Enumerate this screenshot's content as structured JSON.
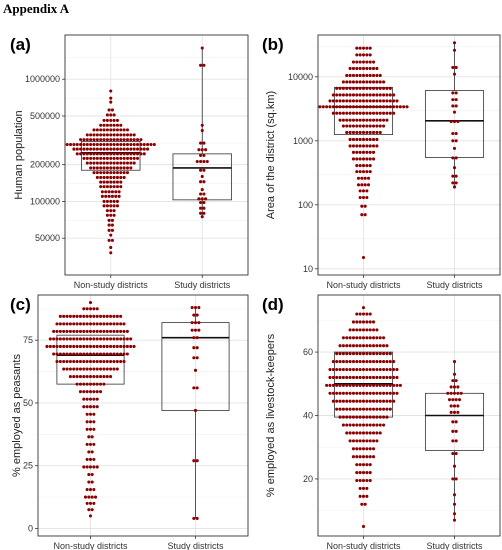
{
  "heading": "Appendix A",
  "colors": {
    "dot": "#8b0000",
    "box": "#333333",
    "grid_major": "#e3e3e3",
    "grid_minor": "#f1f1f1",
    "panel_border": "#333333",
    "background": "#ffffff"
  },
  "chart_data": [
    {
      "panel_label": "(a)",
      "type": "dotplot-boxplot",
      "ylabel": "Human population",
      "y_scale": "log",
      "ylim": [
        25000,
        2300000
      ],
      "yticks": [
        50000,
        100000,
        200000,
        500000,
        1000000
      ],
      "ytick_labels": [
        "50000",
        "100000",
        "200000",
        "500000",
        "1000000"
      ],
      "minor_breaks": [
        70000,
        140000,
        300000,
        700000,
        1500000
      ],
      "categories": [
        "Non-study districts",
        "Study districts"
      ],
      "box": [
        {
          "name": "Non-study districts",
          "q1": 180000,
          "median": 250000,
          "q3": 310000
        },
        {
          "name": "Study districts",
          "q1": 103000,
          "median": 188000,
          "q3": 245000,
          "lower_whisker": 75000,
          "upper_whisker": 1800000
        }
      ],
      "dots": [
        {
          "name": "Non-study districts",
          "bins": [
            {
              "y": 800000,
              "n": 1
            },
            {
              "y": 700000,
              "n": 1
            },
            {
              "y": 650000,
              "n": 1
            },
            {
              "y": 560000,
              "n": 2
            },
            {
              "y": 510000,
              "n": 3
            },
            {
              "y": 460000,
              "n": 5
            },
            {
              "y": 420000,
              "n": 7
            },
            {
              "y": 385000,
              "n": 11
            },
            {
              "y": 350000,
              "n": 15
            },
            {
              "y": 320000,
              "n": 19
            },
            {
              "y": 292000,
              "n": 27
            },
            {
              "y": 268000,
              "n": 23
            },
            {
              "y": 245000,
              "n": 21
            },
            {
              "y": 225000,
              "n": 17
            },
            {
              "y": 206000,
              "n": 15
            },
            {
              "y": 188000,
              "n": 13
            },
            {
              "y": 172000,
              "n": 11
            },
            {
              "y": 157000,
              "n": 9
            },
            {
              "y": 144000,
              "n": 7
            },
            {
              "y": 132000,
              "n": 7
            },
            {
              "y": 120000,
              "n": 6
            },
            {
              "y": 110000,
              "n": 6
            },
            {
              "y": 100000,
              "n": 5
            },
            {
              "y": 92000,
              "n": 5
            },
            {
              "y": 84000,
              "n": 3
            },
            {
              "y": 77000,
              "n": 3
            },
            {
              "y": 70000,
              "n": 2
            },
            {
              "y": 64000,
              "n": 2
            },
            {
              "y": 58000,
              "n": 2
            },
            {
              "y": 53000,
              "n": 1
            },
            {
              "y": 48000,
              "n": 2
            },
            {
              "y": 42000,
              "n": 1
            },
            {
              "y": 38000,
              "n": 1
            }
          ]
        },
        {
          "name": "Study districts",
          "bins": [
            {
              "y": 1800000,
              "n": 1
            },
            {
              "y": 1300000,
              "n": 2
            },
            {
              "y": 420000,
              "n": 1
            },
            {
              "y": 380000,
              "n": 1
            },
            {
              "y": 300000,
              "n": 2
            },
            {
              "y": 265000,
              "n": 3
            },
            {
              "y": 238000,
              "n": 2
            },
            {
              "y": 212000,
              "n": 4
            },
            {
              "y": 180000,
              "n": 2
            },
            {
              "y": 160000,
              "n": 1
            },
            {
              "y": 145000,
              "n": 2
            },
            {
              "y": 125000,
              "n": 1
            },
            {
              "y": 115000,
              "n": 2
            },
            {
              "y": 105000,
              "n": 3
            },
            {
              "y": 98000,
              "n": 2
            },
            {
              "y": 88000,
              "n": 2
            },
            {
              "y": 80000,
              "n": 2
            },
            {
              "y": 75000,
              "n": 1
            }
          ]
        }
      ]
    },
    {
      "panel_label": "(b)",
      "type": "dotplot-boxplot",
      "ylabel": "Area of the district (sq.km)",
      "y_scale": "log",
      "ylim": [
        8,
        45000
      ],
      "yticks": [
        10,
        100,
        1000,
        10000
      ],
      "ytick_labels": [
        "10",
        "100",
        "1000",
        "10000"
      ],
      "minor_breaks": [
        30,
        300,
        3000,
        30000
      ],
      "categories": [
        "Non-study districts",
        "Study districts"
      ],
      "box": [
        {
          "name": "Non-study districts",
          "q1": 1250,
          "median": 3400,
          "q3": 6800
        },
        {
          "name": "Study districts",
          "q1": 550,
          "median": 2050,
          "q3": 6100,
          "lower_whisker": 190,
          "upper_whisker": 35000
        }
      ],
      "dots": [
        {
          "name": "Non-study districts",
          "bins": [
            {
              "y": 28000,
              "n": 5
            },
            {
              "y": 22000,
              "n": 5
            },
            {
              "y": 17000,
              "n": 7
            },
            {
              "y": 13500,
              "n": 9
            },
            {
              "y": 10500,
              "n": 11
            },
            {
              "y": 8300,
              "n": 13
            },
            {
              "y": 6600,
              "n": 17
            },
            {
              "y": 5200,
              "n": 19
            },
            {
              "y": 4200,
              "n": 21
            },
            {
              "y": 3400,
              "n": 27
            },
            {
              "y": 2700,
              "n": 19
            },
            {
              "y": 2100,
              "n": 15
            },
            {
              "y": 1700,
              "n": 13
            },
            {
              "y": 1350,
              "n": 11
            },
            {
              "y": 1050,
              "n": 9
            },
            {
              "y": 830,
              "n": 9
            },
            {
              "y": 660,
              "n": 7
            },
            {
              "y": 520,
              "n": 7
            },
            {
              "y": 410,
              "n": 5
            },
            {
              "y": 330,
              "n": 5
            },
            {
              "y": 260,
              "n": 4
            },
            {
              "y": 205,
              "n": 4
            },
            {
              "y": 165,
              "n": 3
            },
            {
              "y": 130,
              "n": 3
            },
            {
              "y": 95,
              "n": 2
            },
            {
              "y": 70,
              "n": 2
            },
            {
              "y": 15,
              "n": 1
            }
          ]
        },
        {
          "name": "Study districts",
          "bins": [
            {
              "y": 34000,
              "n": 1
            },
            {
              "y": 26000,
              "n": 1
            },
            {
              "y": 14000,
              "n": 2
            },
            {
              "y": 11000,
              "n": 1
            },
            {
              "y": 5600,
              "n": 2
            },
            {
              "y": 4400,
              "n": 2
            },
            {
              "y": 3500,
              "n": 2
            },
            {
              "y": 2800,
              "n": 1
            },
            {
              "y": 2000,
              "n": 3
            },
            {
              "y": 1300,
              "n": 2
            },
            {
              "y": 1000,
              "n": 2
            },
            {
              "y": 760,
              "n": 1
            },
            {
              "y": 540,
              "n": 2
            },
            {
              "y": 380,
              "n": 1
            },
            {
              "y": 280,
              "n": 2
            },
            {
              "y": 220,
              "n": 2
            },
            {
              "y": 190,
              "n": 1
            }
          ]
        }
      ]
    },
    {
      "panel_label": "(c)",
      "type": "dotplot-boxplot",
      "ylabel": "% employed as peasants",
      "y_scale": "linear",
      "ylim": [
        -3,
        93
      ],
      "yticks": [
        0,
        25,
        50,
        75
      ],
      "ytick_labels": [
        "0",
        "25",
        "50",
        "75"
      ],
      "minor_breaks": [
        12.5,
        37.5,
        62.5,
        87.5
      ],
      "categories": [
        "Non-study districts",
        "Study districts"
      ],
      "box": [
        {
          "name": "Non-study districts",
          "q1": 57.5,
          "median": 69,
          "q3": 77
        },
        {
          "name": "Study districts",
          "q1": 47,
          "median": 76,
          "q3": 82,
          "lower_whisker": 4,
          "upper_whisker": 88
        }
      ],
      "dots": [
        {
          "name": "Non-study districts",
          "bins": [
            {
              "y": 90,
              "n": 1
            },
            {
              "y": 87.5,
              "n": 5
            },
            {
              "y": 84.5,
              "n": 19
            },
            {
              "y": 81.5,
              "n": 21
            },
            {
              "y": 78.5,
              "n": 23
            },
            {
              "y": 75.5,
              "n": 25
            },
            {
              "y": 72.5,
              "n": 27
            },
            {
              "y": 69.5,
              "n": 23
            },
            {
              "y": 66.5,
              "n": 21
            },
            {
              "y": 63.5,
              "n": 17
            },
            {
              "y": 60.5,
              "n": 13
            },
            {
              "y": 57.5,
              "n": 9
            },
            {
              "y": 54.5,
              "n": 7
            },
            {
              "y": 51.5,
              "n": 5
            },
            {
              "y": 48.5,
              "n": 5
            },
            {
              "y": 45.5,
              "n": 3
            },
            {
              "y": 42.5,
              "n": 3
            },
            {
              "y": 39.5,
              "n": 3
            },
            {
              "y": 36.5,
              "n": 2
            },
            {
              "y": 33.5,
              "n": 3
            },
            {
              "y": 30.5,
              "n": 2
            },
            {
              "y": 27.5,
              "n": 3
            },
            {
              "y": 24.5,
              "n": 5
            },
            {
              "y": 21.5,
              "n": 2
            },
            {
              "y": 18.5,
              "n": 2
            },
            {
              "y": 15.5,
              "n": 3
            },
            {
              "y": 12.5,
              "n": 4
            },
            {
              "y": 10,
              "n": 3
            },
            {
              "y": 7.5,
              "n": 2
            },
            {
              "y": 5,
              "n": 1
            }
          ]
        },
        {
          "name": "Study districts",
          "bins": [
            {
              "y": 88,
              "n": 3
            },
            {
              "y": 85,
              "n": 2
            },
            {
              "y": 82,
              "n": 3
            },
            {
              "y": 79,
              "n": 3
            },
            {
              "y": 76,
              "n": 2
            },
            {
              "y": 72,
              "n": 2
            },
            {
              "y": 68,
              "n": 2
            },
            {
              "y": 63,
              "n": 1
            },
            {
              "y": 56,
              "n": 2
            },
            {
              "y": 47,
              "n": 1
            },
            {
              "y": 27,
              "n": 2
            },
            {
              "y": 4,
              "n": 2
            }
          ]
        }
      ]
    },
    {
      "panel_label": "(d)",
      "type": "dotplot-boxplot",
      "ylabel": "% employed as livestock-keepers",
      "y_scale": "linear",
      "ylim": [
        2,
        78
      ],
      "yticks": [
        20,
        40,
        60
      ],
      "ytick_labels": [
        "20",
        "40",
        "60"
      ],
      "minor_breaks": [
        10,
        30,
        50,
        70
      ],
      "categories": [
        "Non-study districts",
        "Study districts"
      ],
      "box": [
        {
          "name": "Non-study districts",
          "q1": 39.5,
          "median": 50,
          "q3": 60
        },
        {
          "name": "Study districts",
          "q1": 29,
          "median": 40,
          "q3": 47,
          "lower_whisker": 7,
          "upper_whisker": 57
        }
      ],
      "dots": [
        {
          "name": "Non-study districts",
          "bins": [
            {
              "y": 74,
              "n": 1
            },
            {
              "y": 72,
              "n": 5
            },
            {
              "y": 69.5,
              "n": 7
            },
            {
              "y": 67,
              "n": 9
            },
            {
              "y": 64.5,
              "n": 13
            },
            {
              "y": 62,
              "n": 15
            },
            {
              "y": 59.5,
              "n": 17
            },
            {
              "y": 57,
              "n": 19
            },
            {
              "y": 54.5,
              "n": 21
            },
            {
              "y": 52,
              "n": 21
            },
            {
              "y": 49.5,
              "n": 23
            },
            {
              "y": 47,
              "n": 21
            },
            {
              "y": 44.5,
              "n": 19
            },
            {
              "y": 42,
              "n": 17
            },
            {
              "y": 39.5,
              "n": 15
            },
            {
              "y": 37,
              "n": 13
            },
            {
              "y": 34.5,
              "n": 11
            },
            {
              "y": 32,
              "n": 9
            },
            {
              "y": 29.5,
              "n": 7
            },
            {
              "y": 27,
              "n": 7
            },
            {
              "y": 24.5,
              "n": 5
            },
            {
              "y": 22,
              "n": 5
            },
            {
              "y": 19.5,
              "n": 5
            },
            {
              "y": 17,
              "n": 3
            },
            {
              "y": 14.5,
              "n": 3
            },
            {
              "y": 12,
              "n": 2
            },
            {
              "y": 5,
              "n": 1
            }
          ]
        },
        {
          "name": "Study districts",
          "bins": [
            {
              "y": 57,
              "n": 1
            },
            {
              "y": 53,
              "n": 1
            },
            {
              "y": 51,
              "n": 2
            },
            {
              "y": 49,
              "n": 3
            },
            {
              "y": 47,
              "n": 5
            },
            {
              "y": 45,
              "n": 4
            },
            {
              "y": 43,
              "n": 3
            },
            {
              "y": 41,
              "n": 3
            },
            {
              "y": 38,
              "n": 2
            },
            {
              "y": 35,
              "n": 2
            },
            {
              "y": 32,
              "n": 2
            },
            {
              "y": 28,
              "n": 2
            },
            {
              "y": 24,
              "n": 1
            },
            {
              "y": 20,
              "n": 2
            },
            {
              "y": 15,
              "n": 1
            },
            {
              "y": 12,
              "n": 1
            },
            {
              "y": 9,
              "n": 1
            },
            {
              "y": 7,
              "n": 1
            }
          ]
        }
      ]
    }
  ]
}
